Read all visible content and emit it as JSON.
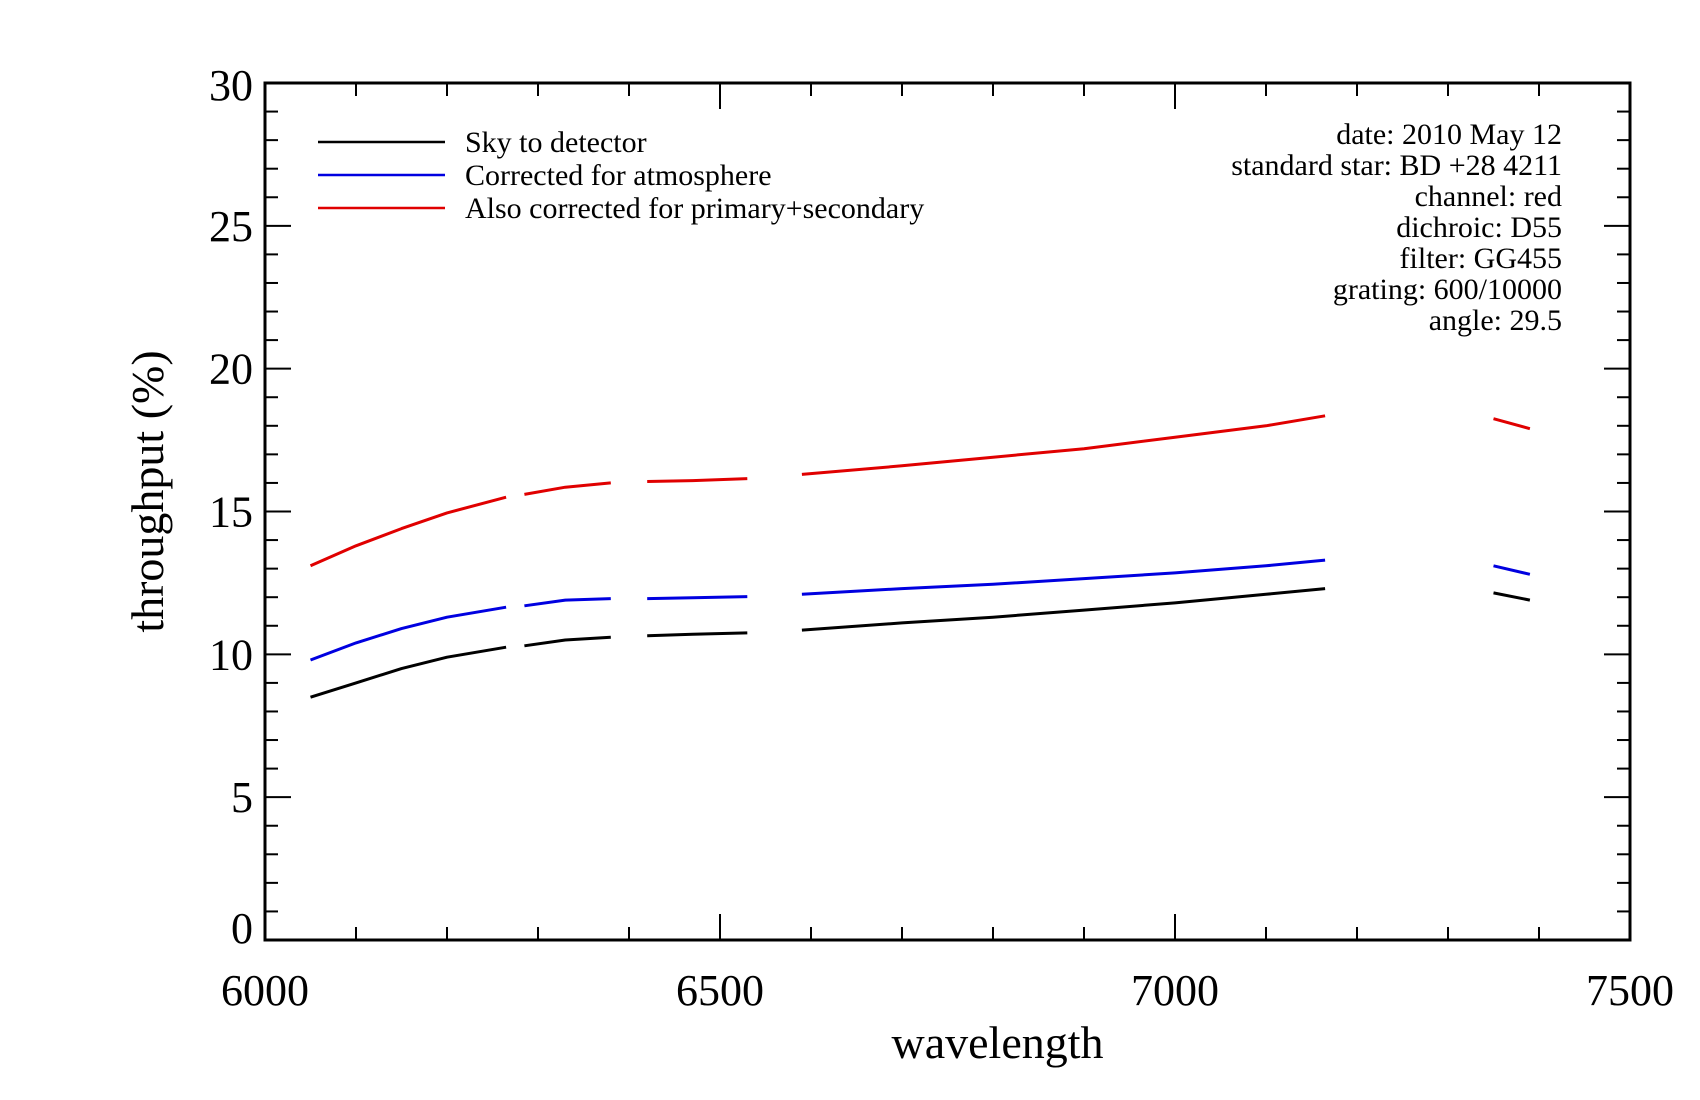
{
  "chart_data": {
    "type": "line",
    "title": "",
    "xlabel": "wavelength",
    "ylabel": "throughput (%)",
    "xlim": [
      6000,
      7500
    ],
    "ylim": [
      0,
      30
    ],
    "x_ticks": [
      6000,
      6500,
      7000,
      7500
    ],
    "x_tick_labels": [
      "6000",
      "6500",
      "7000",
      "7500"
    ],
    "y_ticks": [
      0,
      5,
      10,
      15,
      20,
      25,
      30
    ],
    "y_tick_labels": [
      "0",
      "5",
      "10",
      "15",
      "20",
      "25",
      "30"
    ],
    "grid": false,
    "legend_position": "top-left",
    "series": [
      {
        "name": "Sky to detector",
        "color": "#000000",
        "segments": [
          [
            [
              6050,
              8.5
            ],
            [
              6100,
              9.0
            ],
            [
              6150,
              9.5
            ],
            [
              6200,
              9.9
            ],
            [
              6265,
              10.25
            ]
          ],
          [
            [
              6285,
              10.3
            ],
            [
              6330,
              10.5
            ],
            [
              6380,
              10.6
            ]
          ],
          [
            [
              6420,
              10.65
            ],
            [
              6470,
              10.7
            ],
            [
              6530,
              10.75
            ]
          ],
          [
            [
              6590,
              10.85
            ],
            [
              6700,
              11.1
            ],
            [
              6800,
              11.3
            ],
            [
              6900,
              11.55
            ],
            [
              7000,
              11.8
            ],
            [
              7100,
              12.1
            ],
            [
              7165,
              12.3
            ]
          ],
          [
            [
              7350,
              12.15
            ],
            [
              7390,
              11.9
            ]
          ]
        ]
      },
      {
        "name": "Corrected for atmosphere",
        "color": "#0000e0",
        "segments": [
          [
            [
              6050,
              9.8
            ],
            [
              6100,
              10.4
            ],
            [
              6150,
              10.9
            ],
            [
              6200,
              11.3
            ],
            [
              6265,
              11.65
            ]
          ],
          [
            [
              6285,
              11.7
            ],
            [
              6330,
              11.9
            ],
            [
              6380,
              11.95
            ]
          ],
          [
            [
              6420,
              11.95
            ],
            [
              6470,
              11.98
            ],
            [
              6530,
              12.02
            ]
          ],
          [
            [
              6590,
              12.1
            ],
            [
              6700,
              12.3
            ],
            [
              6800,
              12.45
            ],
            [
              6900,
              12.65
            ],
            [
              7000,
              12.85
            ],
            [
              7100,
              13.1
            ],
            [
              7165,
              13.3
            ]
          ],
          [
            [
              7350,
              13.1
            ],
            [
              7390,
              12.8
            ]
          ]
        ]
      },
      {
        "name": "Also corrected for primary+secondary",
        "color": "#e00000",
        "segments": [
          [
            [
              6050,
              13.1
            ],
            [
              6100,
              13.8
            ],
            [
              6150,
              14.4
            ],
            [
              6200,
              14.95
            ],
            [
              6265,
              15.5
            ]
          ],
          [
            [
              6285,
              15.6
            ],
            [
              6330,
              15.85
            ],
            [
              6380,
              16.0
            ]
          ],
          [
            [
              6420,
              16.05
            ],
            [
              6470,
              16.08
            ],
            [
              6530,
              16.15
            ]
          ],
          [
            [
              6590,
              16.3
            ],
            [
              6700,
              16.6
            ],
            [
              6800,
              16.9
            ],
            [
              6900,
              17.2
            ],
            [
              7000,
              17.6
            ],
            [
              7100,
              18.0
            ],
            [
              7165,
              18.35
            ]
          ],
          [
            [
              7350,
              18.25
            ],
            [
              7390,
              17.9
            ]
          ]
        ]
      }
    ],
    "annotations": [
      "date: 2010 May 12",
      "standard star: BD +28 4211",
      "channel: red",
      "dichroic: D55",
      "filter: GG455",
      "grating: 600/10000",
      "angle: 29.5"
    ]
  }
}
